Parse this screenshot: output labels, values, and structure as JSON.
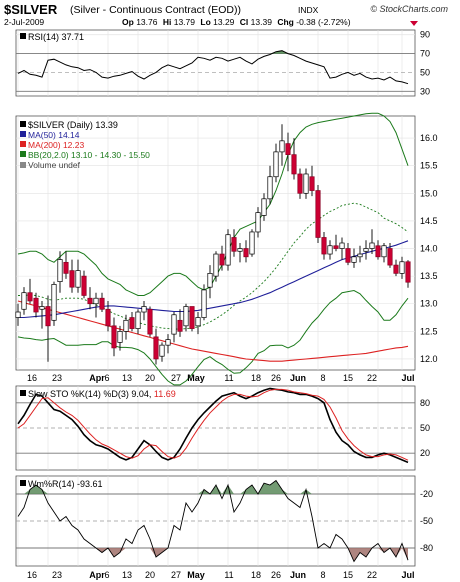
{
  "header": {
    "symbol": "$SILVER",
    "name": "(Silver - Continuous Contract (EOD))",
    "exchange": "INDX",
    "copyright": "© StockCharts.com",
    "date": "2-Jul-2009",
    "quote": {
      "op_label": "Op",
      "op": "13.76",
      "hi_label": "Hi",
      "hi": "13.79",
      "lo_label": "Lo",
      "lo": "13.29",
      "cl_label": "Cl",
      "cl": "13.39",
      "chg_label": "Chg",
      "chg": "-0.38 (-2.72%)"
    },
    "down_color": "#cc0033"
  },
  "chart_data": [
    {
      "type": "line",
      "panel": "rsi",
      "legend": "RSI(14) 37.71",
      "ylim": [
        25,
        95
      ],
      "ticks": [
        90,
        70,
        50,
        30
      ],
      "ref_lines": [
        70,
        30
      ],
      "mid_line": 50,
      "series": [
        {
          "values": [
            49,
            52,
            48,
            47,
            45,
            63,
            64,
            61,
            58,
            56,
            55,
            52,
            53,
            50,
            45,
            44,
            46,
            47,
            49,
            51,
            46,
            43,
            47,
            50,
            55,
            58,
            56,
            54,
            57,
            60,
            66,
            65,
            63,
            66,
            65,
            62,
            64,
            66,
            62,
            59,
            64,
            67,
            69,
            72,
            73,
            70,
            68,
            65,
            62,
            60,
            58,
            56,
            44,
            45,
            48,
            50,
            47,
            49,
            45,
            43,
            44,
            42,
            45,
            41,
            40,
            38
          ]
        }
      ]
    },
    {
      "type": "candlestick",
      "panel": "price",
      "legend": {
        "title": "$SILVER (Daily) 13.39",
        "ma50": "MA(50) 14.14",
        "ma200": "MA(200) 12.23",
        "bb": "BB(20,2.0) 13.10 - 14.30 - 15.50",
        "volume": "Volume undef"
      },
      "ylim": [
        11.8,
        16.4
      ],
      "ticks": [
        16.0,
        15.5,
        15.0,
        14.5,
        14.0,
        13.5,
        13.0,
        12.5,
        12.0
      ],
      "x_labels": [
        "16",
        "23",
        "Apr",
        "6",
        "13",
        "20",
        "27",
        "May",
        "11",
        "18",
        "26",
        "Jun",
        "8",
        "15",
        "22",
        "Jul"
      ],
      "ohlc": [
        {
          "o": 12.75,
          "h": 13.0,
          "l": 12.6,
          "c": 12.85
        },
        {
          "o": 12.9,
          "h": 13.3,
          "l": 12.8,
          "c": 13.2
        },
        {
          "o": 13.2,
          "h": 13.45,
          "l": 13.0,
          "c": 13.05
        },
        {
          "o": 13.1,
          "h": 13.2,
          "l": 12.75,
          "c": 12.85
        },
        {
          "o": 12.9,
          "h": 13.05,
          "l": 12.55,
          "c": 12.95
        },
        {
          "o": 12.95,
          "h": 13.15,
          "l": 11.95,
          "c": 12.6
        },
        {
          "o": 12.7,
          "h": 13.4,
          "l": 12.6,
          "c": 13.35
        },
        {
          "o": 13.4,
          "h": 13.95,
          "l": 13.2,
          "c": 13.8
        },
        {
          "o": 13.75,
          "h": 13.95,
          "l": 13.45,
          "c": 13.55
        },
        {
          "o": 13.6,
          "h": 13.8,
          "l": 13.2,
          "c": 13.3
        },
        {
          "o": 13.3,
          "h": 13.8,
          "l": 13.2,
          "c": 13.6
        },
        {
          "o": 13.5,
          "h": 13.6,
          "l": 13.1,
          "c": 13.15
        },
        {
          "o": 13.1,
          "h": 13.3,
          "l": 12.9,
          "c": 13.0
        },
        {
          "o": 13.0,
          "h": 13.2,
          "l": 12.75,
          "c": 13.1
        },
        {
          "o": 13.1,
          "h": 13.2,
          "l": 12.85,
          "c": 12.9
        },
        {
          "o": 12.9,
          "h": 13.05,
          "l": 12.5,
          "c": 12.6
        },
        {
          "o": 12.6,
          "h": 12.75,
          "l": 12.05,
          "c": 12.2
        },
        {
          "o": 12.3,
          "h": 12.6,
          "l": 12.15,
          "c": 12.5
        },
        {
          "o": 12.5,
          "h": 12.8,
          "l": 12.35,
          "c": 12.7
        },
        {
          "o": 12.75,
          "h": 12.85,
          "l": 12.5,
          "c": 12.55
        },
        {
          "o": 12.55,
          "h": 12.9,
          "l": 12.45,
          "c": 12.85
        },
        {
          "o": 12.85,
          "h": 13.05,
          "l": 12.7,
          "c": 12.95
        },
        {
          "o": 12.9,
          "h": 12.95,
          "l": 12.4,
          "c": 12.45
        },
        {
          "o": 12.4,
          "h": 12.55,
          "l": 11.9,
          "c": 12.0
        },
        {
          "o": 12.05,
          "h": 12.3,
          "l": 11.95,
          "c": 12.25
        },
        {
          "o": 12.25,
          "h": 12.45,
          "l": 12.1,
          "c": 12.35
        },
        {
          "o": 12.45,
          "h": 12.85,
          "l": 12.3,
          "c": 12.8
        },
        {
          "o": 12.7,
          "h": 12.9,
          "l": 12.4,
          "c": 12.5
        },
        {
          "o": 12.6,
          "h": 13.0,
          "l": 12.5,
          "c": 12.95
        },
        {
          "o": 12.95,
          "h": 12.95,
          "l": 12.5,
          "c": 12.55
        },
        {
          "o": 12.6,
          "h": 12.85,
          "l": 12.45,
          "c": 12.75
        },
        {
          "o": 12.75,
          "h": 13.35,
          "l": 12.7,
          "c": 13.25
        },
        {
          "o": 13.3,
          "h": 13.7,
          "l": 13.1,
          "c": 13.55
        },
        {
          "o": 13.5,
          "h": 13.95,
          "l": 13.4,
          "c": 13.9
        },
        {
          "o": 13.9,
          "h": 14.05,
          "l": 13.6,
          "c": 13.7
        },
        {
          "o": 13.7,
          "h": 14.35,
          "l": 13.6,
          "c": 14.25
        },
        {
          "o": 14.2,
          "h": 14.35,
          "l": 13.85,
          "c": 13.95
        },
        {
          "o": 13.95,
          "h": 14.1,
          "l": 13.75,
          "c": 14.0
        },
        {
          "o": 14.0,
          "h": 14.15,
          "l": 13.75,
          "c": 13.85
        },
        {
          "o": 13.9,
          "h": 14.35,
          "l": 13.85,
          "c": 14.3
        },
        {
          "o": 14.3,
          "h": 14.75,
          "l": 14.2,
          "c": 14.65
        },
        {
          "o": 14.6,
          "h": 15.0,
          "l": 14.5,
          "c": 14.9
        },
        {
          "o": 14.9,
          "h": 15.5,
          "l": 14.8,
          "c": 15.3
        },
        {
          "o": 15.3,
          "h": 15.9,
          "l": 15.2,
          "c": 15.75
        },
        {
          "o": 15.75,
          "h": 16.25,
          "l": 15.5,
          "c": 15.95
        },
        {
          "o": 15.9,
          "h": 16.1,
          "l": 15.4,
          "c": 15.7
        },
        {
          "o": 15.7,
          "h": 16.0,
          "l": 15.25,
          "c": 15.35
        },
        {
          "o": 15.35,
          "h": 15.45,
          "l": 14.9,
          "c": 15.0
        },
        {
          "o": 15.0,
          "h": 15.45,
          "l": 14.9,
          "c": 15.35
        },
        {
          "o": 15.3,
          "h": 15.5,
          "l": 14.95,
          "c": 15.05
        },
        {
          "o": 15.05,
          "h": 15.15,
          "l": 14.1,
          "c": 14.2
        },
        {
          "o": 14.2,
          "h": 14.3,
          "l": 13.8,
          "c": 13.9
        },
        {
          "o": 13.9,
          "h": 14.15,
          "l": 13.8,
          "c": 14.05
        },
        {
          "o": 14.05,
          "h": 14.25,
          "l": 13.95,
          "c": 14.0
        },
        {
          "o": 14.0,
          "h": 14.2,
          "l": 13.8,
          "c": 14.1
        },
        {
          "o": 14.0,
          "h": 14.1,
          "l": 13.7,
          "c": 13.75
        },
        {
          "o": 13.75,
          "h": 14.0,
          "l": 13.65,
          "c": 13.85
        },
        {
          "o": 13.85,
          "h": 14.05,
          "l": 13.75,
          "c": 13.9
        },
        {
          "o": 13.95,
          "h": 14.15,
          "l": 13.8,
          "c": 14.0
        },
        {
          "o": 14.0,
          "h": 14.35,
          "l": 13.9,
          "c": 14.1
        },
        {
          "o": 14.05,
          "h": 14.15,
          "l": 13.8,
          "c": 13.85
        },
        {
          "o": 13.85,
          "h": 14.1,
          "l": 13.75,
          "c": 14.05
        },
        {
          "o": 14.0,
          "h": 14.1,
          "l": 13.65,
          "c": 13.7
        },
        {
          "o": 13.7,
          "h": 13.8,
          "l": 13.5,
          "c": 13.55
        },
        {
          "o": 13.55,
          "h": 13.85,
          "l": 13.45,
          "c": 13.76
        },
        {
          "o": 13.76,
          "h": 13.79,
          "l": 13.29,
          "c": 13.39
        }
      ],
      "ma50": [
        12.75,
        12.75,
        12.76,
        12.77,
        12.78,
        12.79,
        12.8,
        12.82,
        12.84,
        12.86,
        12.88,
        12.9,
        12.92,
        12.94,
        12.95,
        12.96,
        12.96,
        12.95,
        12.94,
        12.93,
        12.92,
        12.91,
        12.9,
        12.89,
        12.88,
        12.87,
        12.86,
        12.86,
        12.86,
        12.87,
        12.88,
        12.9,
        12.92,
        12.94,
        12.96,
        12.98,
        13.0,
        13.02,
        13.05,
        13.08,
        13.12,
        13.16,
        13.2,
        13.25,
        13.3,
        13.35,
        13.4,
        13.45,
        13.5,
        13.55,
        13.6,
        13.65,
        13.7,
        13.75,
        13.8,
        13.83,
        13.86,
        13.89,
        13.92,
        13.95,
        13.98,
        14.0,
        14.03,
        14.06,
        14.1,
        14.14
      ],
      "ma200": [
        13.05,
        13.02,
        12.99,
        12.96,
        12.93,
        12.9,
        12.87,
        12.84,
        12.81,
        12.78,
        12.75,
        12.72,
        12.69,
        12.66,
        12.63,
        12.6,
        12.57,
        12.54,
        12.51,
        12.48,
        12.45,
        12.42,
        12.39,
        12.36,
        12.33,
        12.3,
        12.27,
        12.24,
        12.21,
        12.18,
        12.16,
        12.14,
        12.12,
        12.1,
        12.08,
        12.06,
        12.04,
        12.02,
        12.0,
        11.99,
        11.98,
        11.97,
        11.96,
        11.96,
        11.96,
        11.97,
        11.98,
        11.99,
        12.0,
        12.01,
        12.02,
        12.03,
        12.04,
        12.05,
        12.06,
        12.07,
        12.08,
        12.09,
        12.1,
        12.12,
        12.14,
        12.16,
        12.18,
        12.2,
        12.21,
        12.23
      ],
      "bb_upper": [
        13.9,
        13.92,
        13.95,
        13.95,
        13.9,
        13.8,
        13.75,
        13.85,
        13.95,
        13.95,
        13.95,
        13.9,
        13.8,
        13.7,
        13.55,
        13.45,
        13.4,
        13.35,
        13.25,
        13.2,
        13.15,
        13.15,
        13.2,
        13.3,
        13.4,
        13.5,
        13.55,
        13.55,
        13.5,
        13.4,
        13.3,
        13.25,
        13.3,
        13.5,
        13.7,
        13.95,
        14.2,
        14.35,
        14.4,
        14.45,
        14.5,
        14.65,
        14.8,
        15.05,
        15.35,
        15.7,
        15.95,
        16.1,
        16.2,
        16.25,
        16.28,
        16.3,
        16.32,
        16.34,
        16.36,
        16.38,
        16.4,
        16.42,
        16.44,
        16.45,
        16.45,
        16.4,
        16.3,
        16.1,
        15.8,
        15.5
      ],
      "bb_mid": [
        13.15,
        13.15,
        13.16,
        13.15,
        13.12,
        13.08,
        13.06,
        13.08,
        13.1,
        13.1,
        13.1,
        13.08,
        13.03,
        12.98,
        12.93,
        12.88,
        12.82,
        12.78,
        12.73,
        12.7,
        12.66,
        12.63,
        12.6,
        12.58,
        12.56,
        12.55,
        12.54,
        12.54,
        12.55,
        12.56,
        12.58,
        12.62,
        12.67,
        12.73,
        12.8,
        12.88,
        12.97,
        13.05,
        13.12,
        13.2,
        13.3,
        13.4,
        13.52,
        13.65,
        13.8,
        13.95,
        14.1,
        14.22,
        14.35,
        14.45,
        14.52,
        14.6,
        14.67,
        14.72,
        14.78,
        14.8,
        14.82,
        14.8,
        14.75,
        14.7,
        14.65,
        14.55,
        14.5,
        14.45,
        14.38,
        14.3
      ],
      "bb_lower": [
        12.4,
        12.38,
        12.37,
        12.35,
        12.34,
        12.36,
        12.37,
        12.31,
        12.25,
        12.25,
        12.25,
        12.26,
        12.26,
        12.26,
        12.31,
        12.31,
        12.24,
        12.21,
        12.21,
        12.2,
        12.17,
        12.11,
        12.0,
        11.86,
        11.72,
        11.6,
        11.53,
        11.53,
        11.6,
        11.72,
        11.86,
        11.99,
        12.04,
        11.96,
        11.9,
        11.81,
        11.74,
        11.75,
        11.84,
        11.95,
        12.1,
        12.15,
        12.24,
        12.25,
        12.25,
        12.2,
        12.25,
        12.34,
        12.5,
        12.65,
        12.76,
        12.9,
        13.02,
        13.1,
        13.2,
        13.22,
        13.24,
        13.18,
        13.06,
        12.95,
        12.85,
        12.7,
        12.7,
        12.8,
        12.96,
        13.1
      ]
    },
    {
      "type": "line",
      "panel": "stochastic",
      "legend": "Slow STO %K(14) %D(3)",
      "k_value": "9.04,",
      "d_value": "11.69",
      "ylim": [
        0,
        100
      ],
      "ticks": [
        80,
        50,
        20
      ],
      "ref_lines": [
        80,
        20
      ],
      "mid_line": 50,
      "series": [
        {
          "name": "%K(14)",
          "values": [
            55,
            65,
            78,
            90,
            88,
            80,
            72,
            70,
            65,
            60,
            52,
            42,
            35,
            30,
            28,
            25,
            20,
            15,
            12,
            15,
            25,
            35,
            30,
            22,
            15,
            12,
            15,
            25,
            38,
            50,
            60,
            68,
            75,
            82,
            88,
            90,
            92,
            88,
            85,
            88,
            92,
            95,
            97,
            96,
            95,
            93,
            92,
            90,
            90,
            88,
            85,
            80,
            60,
            45,
            35,
            30,
            22,
            18,
            15,
            15,
            18,
            20,
            18,
            15,
            12,
            9
          ]
        },
        {
          "name": "%D(3)",
          "values": [
            50,
            55,
            65,
            75,
            85,
            86,
            80,
            74,
            69,
            65,
            59,
            51,
            43,
            36,
            31,
            28,
            24,
            20,
            16,
            14,
            17,
            25,
            30,
            29,
            22,
            16,
            14,
            17,
            26,
            38,
            49,
            59,
            68,
            75,
            82,
            87,
            90,
            90,
            88,
            87,
            88,
            92,
            95,
            96,
            96,
            95,
            93,
            92,
            91,
            89,
            88,
            84,
            75,
            62,
            47,
            37,
            29,
            23,
            18,
            16,
            16,
            18,
            19,
            18,
            15,
            11.69
          ]
        }
      ]
    },
    {
      "type": "area",
      "panel": "williams",
      "legend": "Wm%R(14) -93.61",
      "ylim": [
        -100,
        0
      ],
      "ticks": [
        -20,
        -50,
        -80
      ],
      "ref_lines": [
        -20,
        -80
      ],
      "mid_line": -50,
      "series": [
        {
          "values": [
            -45,
            -35,
            -15,
            -10,
            -15,
            -30,
            -40,
            -50,
            -45,
            -55,
            -60,
            -70,
            -75,
            -80,
            -85,
            -80,
            -90,
            -85,
            -70,
            -75,
            -60,
            -55,
            -70,
            -90,
            -85,
            -80,
            -55,
            -60,
            -30,
            -40,
            -30,
            -15,
            -20,
            -10,
            -25,
            -10,
            -40,
            -30,
            -15,
            -10,
            -20,
            -8,
            -10,
            -5,
            -15,
            -25,
            -30,
            -35,
            -15,
            -45,
            -80,
            -75,
            -80,
            -65,
            -70,
            -80,
            -95,
            -85,
            -90,
            -80,
            -75,
            -85,
            -80,
            -90,
            -75,
            -93.61
          ]
        }
      ]
    }
  ]
}
